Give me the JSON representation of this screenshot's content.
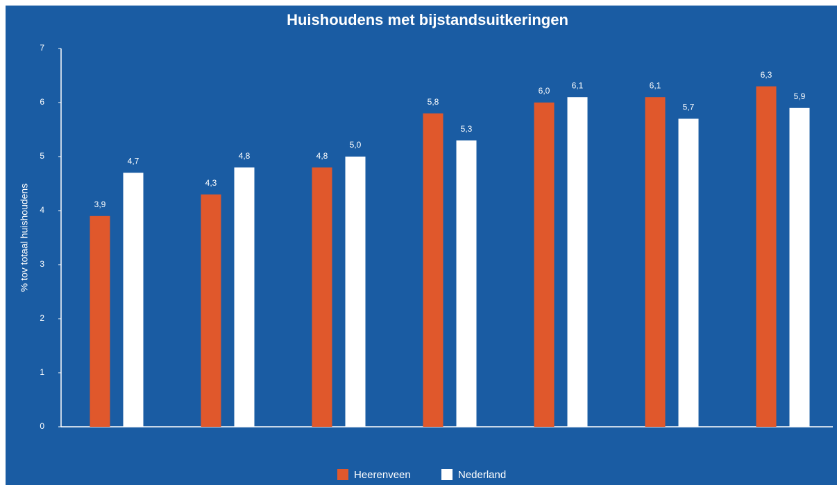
{
  "chart_data": {
    "type": "bar",
    "title": "Huishoudens met bijstandsuitkeringen",
    "ylabel": "% tov totaal huishoudens",
    "categories": [
      null,
      null,
      null,
      null,
      null,
      null,
      null
    ],
    "series": [
      {
        "name": "Heerenveen",
        "color": "#e0582c",
        "values": [
          3.9,
          4.3,
          4.8,
          5.8,
          6.0,
          6.1,
          6.3
        ],
        "value_labels": [
          "3,9",
          "4,3",
          "4,8",
          "5,8",
          "6,0",
          "6,1",
          "6,3"
        ]
      },
      {
        "name": "Nederland",
        "color": "#ffffff",
        "values": [
          4.7,
          4.8,
          5.0,
          5.3,
          6.1,
          5.7,
          5.9
        ],
        "value_labels": [
          "4,7",
          "4,8",
          "5,0",
          "5,3",
          "6,1",
          "5,7",
          "5,9"
        ]
      }
    ],
    "ylim": [
      0,
      7
    ],
    "yticks": [
      0,
      1,
      2,
      3,
      4,
      5,
      6,
      7
    ],
    "grid": false,
    "legend": "bottom"
  }
}
